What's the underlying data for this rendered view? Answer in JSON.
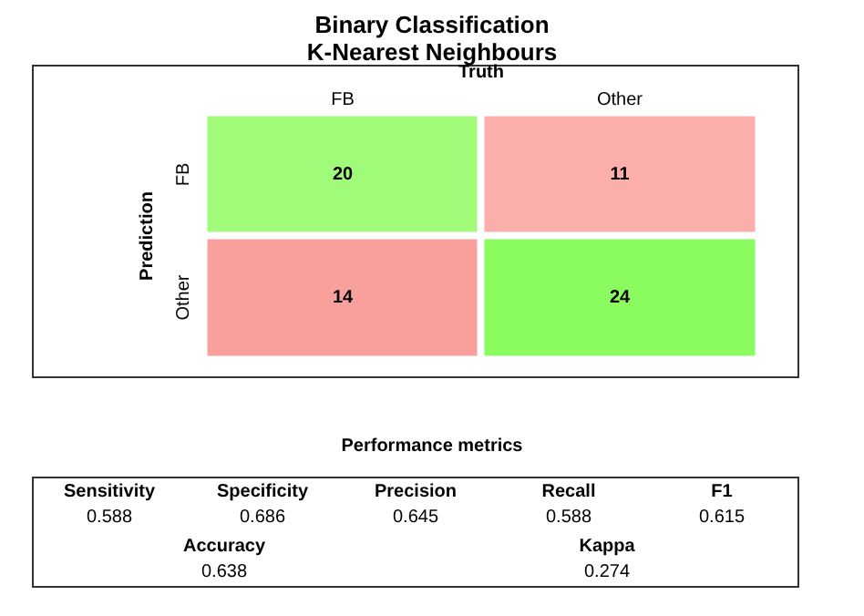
{
  "chart_data": [
    {
      "type": "heatmap",
      "title": "Binary Classification",
      "subtitle": "K-Nearest Neighbours",
      "xlabel": "Truth",
      "ylabel": "Prediction",
      "categories": [
        "FB",
        "Other"
      ],
      "y_categories": [
        "FB",
        "Other"
      ],
      "cells": [
        [
          20,
          11
        ],
        [
          14,
          24
        ]
      ],
      "colors": [
        "#a0fc78",
        "#fbaeaa",
        "#f9a09c",
        "#8afc60"
      ],
      "data_labels": true
    },
    {
      "type": "other",
      "title": "Performance metrics",
      "categories": [
        "Sensitivity",
        "Specificity",
        "Precision",
        "Recall",
        "F1",
        "Accuracy",
        "Kappa"
      ],
      "values": [
        0.588,
        0.686,
        0.645,
        0.588,
        0.615,
        0.638,
        0.274
      ],
      "data_labels": true
    }
  ]
}
